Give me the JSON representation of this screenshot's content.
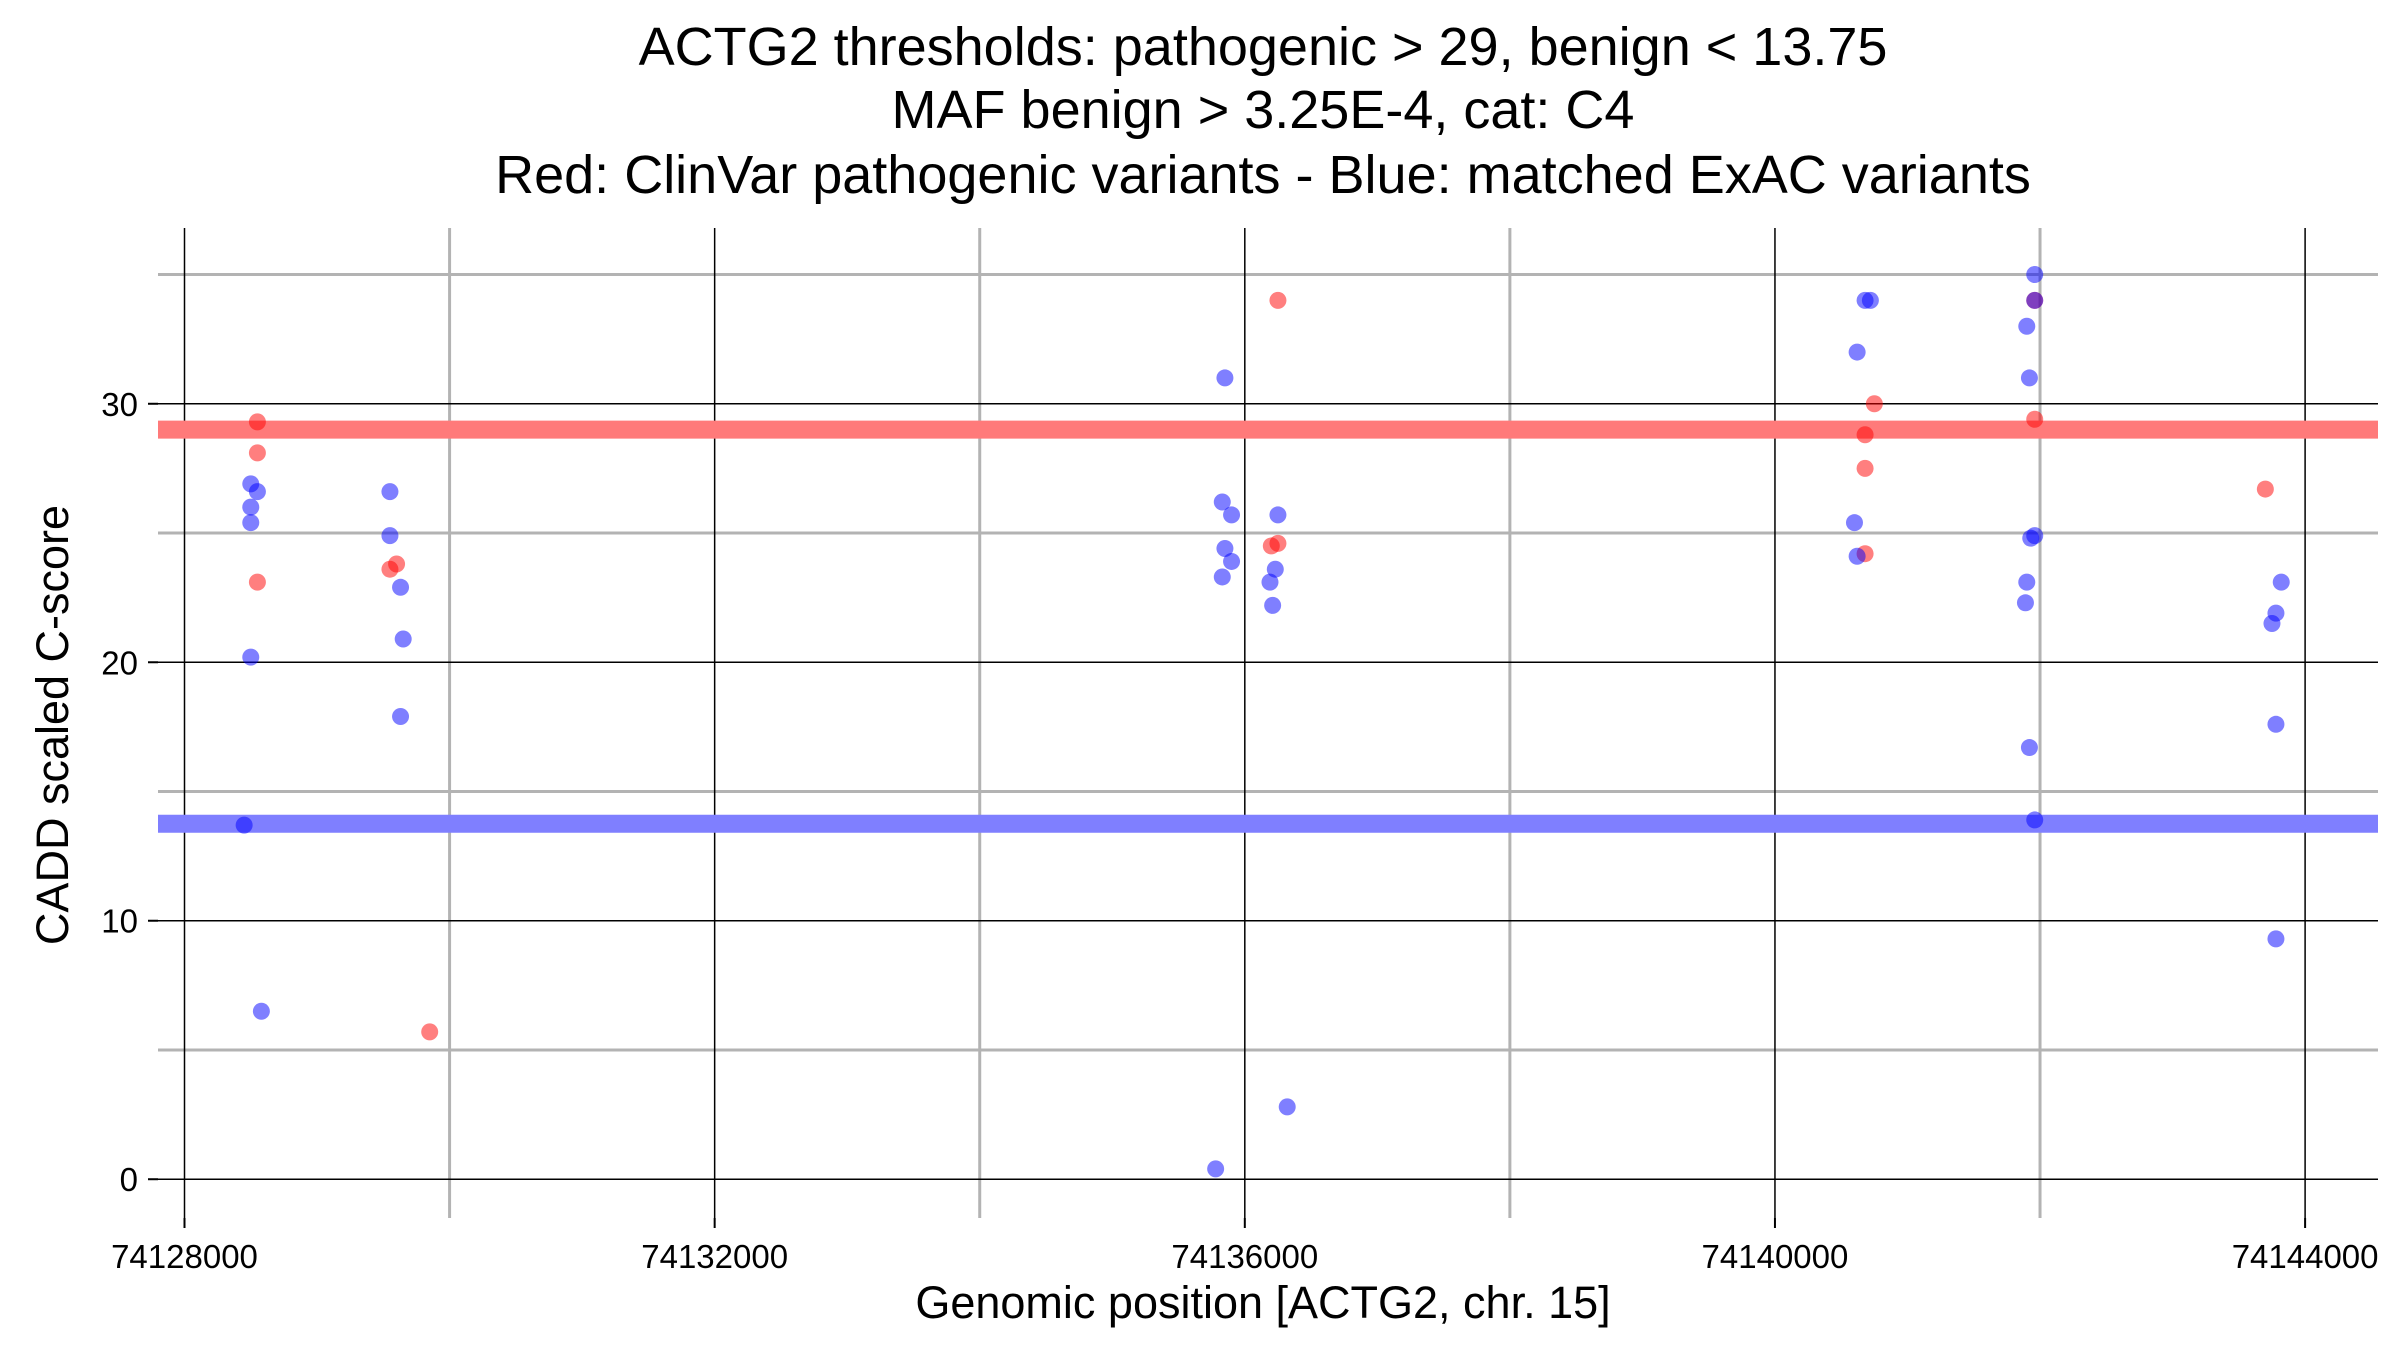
{
  "chart_data": {
    "type": "scatter",
    "title_lines": [
      "ACTG2 thresholds: pathogenic > 29, benign < 13.75",
      "MAF benign > 3.25E-4, cat: C4",
      "Red: ClinVar pathogenic variants - Blue: matched ExAC variants"
    ],
    "xlabel": "Genomic position [ACTG2, chr. 15]",
    "ylabel": "CADD scaled C-score",
    "xlim": [
      74127800,
      74144550
    ],
    "ylim": [
      -1.5,
      36.8
    ],
    "xticks": [
      74128000,
      74132000,
      74136000,
      74140000,
      74144000
    ],
    "xtick_labels": [
      "74128000",
      "74132000",
      "74136000",
      "74140000",
      "74144000"
    ],
    "x_minor_grid": [
      74130000,
      74134000,
      74138000,
      74142000
    ],
    "yticks": [
      0,
      10,
      20,
      30
    ],
    "ytick_labels": [
      "0",
      "10",
      "20",
      "30"
    ],
    "y_minor_grid": [
      5,
      15,
      25,
      35
    ],
    "grid": true,
    "thresholds": [
      {
        "kind": "pathogenic",
        "value": 29,
        "color": "#ff7a7a"
      },
      {
        "kind": "benign",
        "value": 13.75,
        "color": "#7f7fff"
      }
    ],
    "colors": {
      "pathogenic_points": "#ff0000",
      "benign_points": "#0000ff",
      "point_opacity": 0.5,
      "grid_major": "#000000",
      "grid_minor": "#b3b3b3"
    },
    "series": [
      {
        "key": "pathogenic",
        "points": [
          [
            74128550,
            29.3
          ],
          [
            74128550,
            28.1
          ],
          [
            74128550,
            23.1
          ],
          [
            74129550,
            23.6
          ],
          [
            74129600,
            23.8
          ],
          [
            74129850,
            5.7
          ],
          [
            74136250,
            34.0
          ],
          [
            74136200,
            24.5
          ],
          [
            74136250,
            24.6
          ],
          [
            74140680,
            28.8
          ],
          [
            74140680,
            27.5
          ],
          [
            74140680,
            24.2
          ],
          [
            74140750,
            30.0
          ],
          [
            74141960,
            34.0
          ],
          [
            74141960,
            29.4
          ],
          [
            74143700,
            26.7
          ]
        ]
      },
      {
        "key": "benign",
        "points": [
          [
            74128500,
            26.9
          ],
          [
            74128550,
            26.6
          ],
          [
            74128500,
            26.0
          ],
          [
            74128500,
            25.4
          ],
          [
            74128500,
            20.2
          ],
          [
            74128450,
            13.7
          ],
          [
            74128580,
            6.5
          ],
          [
            74129550,
            26.6
          ],
          [
            74129550,
            24.9
          ],
          [
            74129630,
            22.9
          ],
          [
            74129650,
            20.9
          ],
          [
            74129630,
            17.9
          ],
          [
            74135850,
            31.0
          ],
          [
            74135830,
            26.2
          ],
          [
            74135900,
            25.7
          ],
          [
            74135850,
            24.4
          ],
          [
            74135900,
            23.9
          ],
          [
            74135830,
            23.3
          ],
          [
            74135780,
            0.4
          ],
          [
            74136250,
            25.7
          ],
          [
            74136230,
            23.6
          ],
          [
            74136190,
            23.1
          ],
          [
            74136210,
            22.2
          ],
          [
            74136320,
            2.8
          ],
          [
            74140680,
            34.0
          ],
          [
            74140720,
            34.0
          ],
          [
            74140620,
            32.0
          ],
          [
            74140600,
            25.4
          ],
          [
            74140620,
            24.1
          ],
          [
            74141960,
            35.0
          ],
          [
            74141960,
            34.0
          ],
          [
            74141900,
            33.0
          ],
          [
            74141920,
            31.0
          ],
          [
            74141930,
            24.8
          ],
          [
            74141960,
            24.9
          ],
          [
            74141900,
            23.1
          ],
          [
            74141890,
            22.3
          ],
          [
            74141920,
            16.7
          ],
          [
            74141960,
            13.9
          ],
          [
            74143820,
            23.1
          ],
          [
            74143780,
            21.9
          ],
          [
            74143750,
            21.5
          ],
          [
            74143780,
            17.6
          ],
          [
            74143780,
            9.3
          ]
        ]
      }
    ]
  }
}
